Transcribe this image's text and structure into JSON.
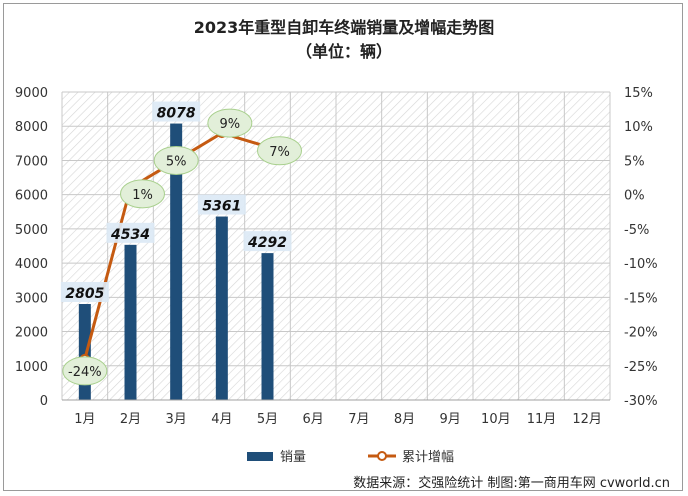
{
  "title": "2023年重型自卸车终端销量及增幅走势图",
  "subtitle": "（单位：辆）",
  "source": "数据来源：交强险统计 制图:第一商用车网 cvworld.cn",
  "chart_data": {
    "type": "bar",
    "categories": [
      "1月",
      "2月",
      "3月",
      "4月",
      "5月",
      "6月",
      "7月",
      "8月",
      "9月",
      "10月",
      "11月",
      "12月"
    ],
    "series": [
      {
        "name": "销量",
        "type": "bar",
        "axis": "left",
        "color": "#1f4e79",
        "values": [
          2805,
          4534,
          8078,
          5361,
          4292,
          null,
          null,
          null,
          null,
          null,
          null,
          null
        ],
        "labels": [
          "2805",
          "4534",
          "8078",
          "5361",
          "4292"
        ]
      },
      {
        "name": "累计增幅",
        "type": "line",
        "axis": "right",
        "color": "#c55a11",
        "values": [
          -24,
          1,
          5,
          9,
          7,
          null,
          null,
          null,
          null,
          null,
          null,
          null
        ],
        "labels": [
          "-24%",
          "1%",
          "5%",
          "9%",
          "7%"
        ]
      }
    ],
    "y_left": {
      "ticks": [
        "0",
        "1000",
        "2000",
        "3000",
        "4000",
        "5000",
        "6000",
        "7000",
        "8000",
        "9000"
      ],
      "ylim": [
        0,
        9000
      ]
    },
    "y_right": {
      "ticks": [
        "-30%",
        "-25%",
        "-20%",
        "-15%",
        "-10%",
        "-5%",
        "0%",
        "5%",
        "10%",
        "15%"
      ],
      "ylim": [
        -30,
        15
      ]
    },
    "legend": [
      "销量",
      "累计增幅"
    ],
    "legend_position": "bottom",
    "grid": true
  }
}
